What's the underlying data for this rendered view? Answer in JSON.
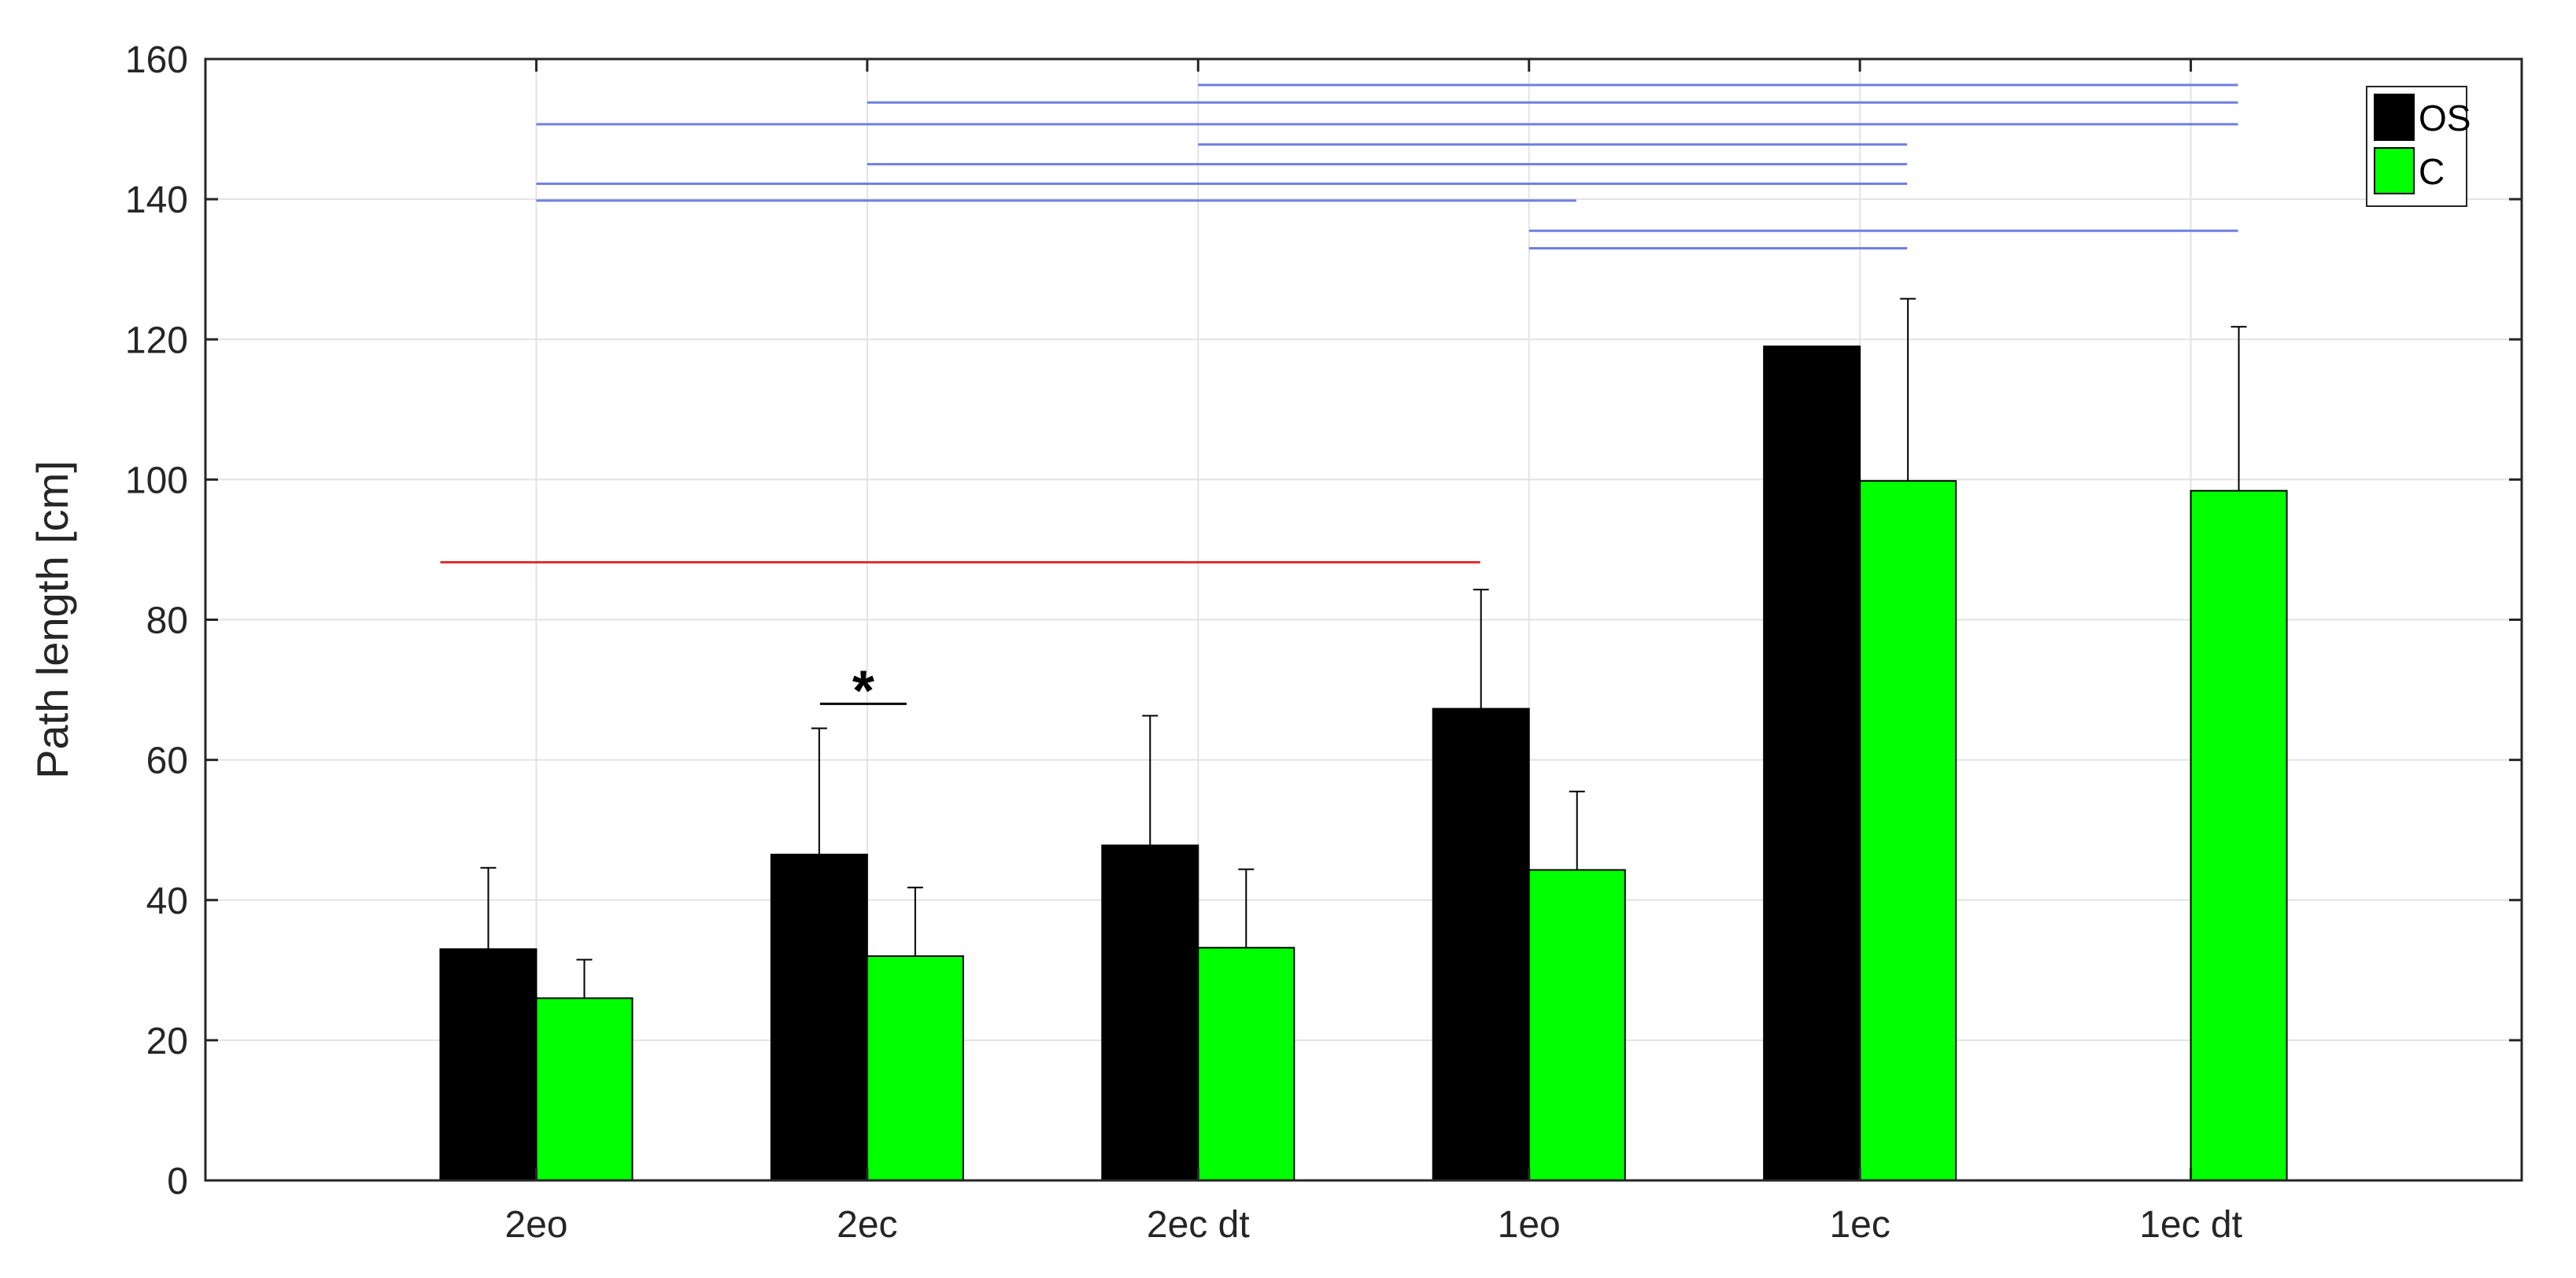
{
  "chart_data": {
    "type": "bar",
    "title": "",
    "xlabel": "",
    "ylabel": "Path length [cm]",
    "ylim": [
      0,
      160
    ],
    "yticks": [
      "0",
      "20",
      "40",
      "60",
      "80",
      "100",
      "120",
      "140",
      "160"
    ],
    "categories": [
      "2eo",
      "2ec",
      "2ec dt",
      "1eo",
      "1ec",
      "1ec dt"
    ],
    "series": [
      {
        "name": "OS",
        "color": "#000000",
        "values": [
          33,
          46.5,
          47.8,
          67.3,
          119,
          null
        ],
        "error": [
          11.6,
          18,
          18.5,
          17,
          null,
          null
        ]
      },
      {
        "name": "C",
        "color": "#00ff00",
        "values": [
          26,
          32,
          33.2,
          44.3,
          99.8,
          98.4
        ],
        "error": [
          5.5,
          9.8,
          11.2,
          11.2,
          26,
          23.4
        ]
      }
    ],
    "grid": true,
    "legend_position": "top-right",
    "significance": {
      "star_label": "*",
      "star_category": "2ec",
      "star_y": 68,
      "red_line": {
        "from": "2eo",
        "to": "1eo",
        "y": 88.2,
        "color": "#e03030"
      },
      "blue_color": "#6f7fe0",
      "blue_lines": [
        {
          "from": "2ec dt",
          "to": "1ec dt",
          "y": 156.3
        },
        {
          "from": "2ec",
          "to": "1ec dt",
          "y": 153.8
        },
        {
          "from": "2eo",
          "to": "1ec dt",
          "y": 150.7
        },
        {
          "from": "2ec dt",
          "to": "1ec",
          "y": 147.8
        },
        {
          "from": "2ec",
          "to": "1ec",
          "y": 145
        },
        {
          "from": "2eo",
          "to": "1ec",
          "y": 142.2
        },
        {
          "from": "2eo",
          "to": "1eo",
          "y": 139.8
        },
        {
          "from": "1eo",
          "to": "1ec dt",
          "y": 135.5
        },
        {
          "from": "1eo",
          "to": "1ec",
          "y": 133
        }
      ]
    }
  }
}
